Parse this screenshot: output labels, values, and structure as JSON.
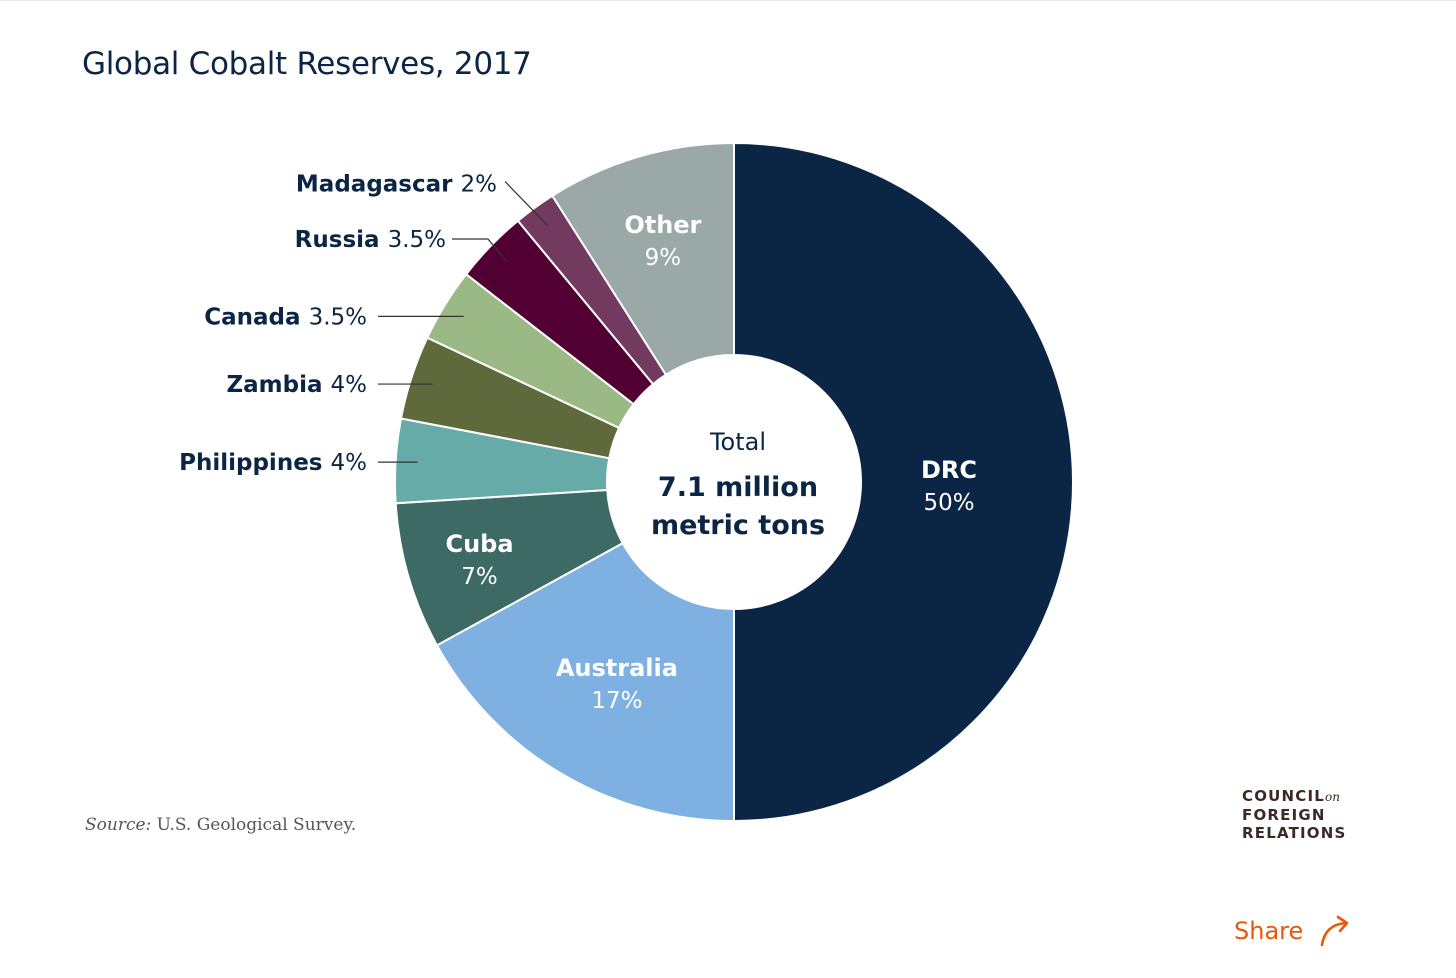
{
  "chart_data": {
    "type": "pie",
    "title": "Global Cobalt Reserves, 2017",
    "slices": [
      {
        "label": "DRC",
        "value_label": "50%",
        "value": 50,
        "color": "#0b2545",
        "label_color": "#ffffff"
      },
      {
        "label": "Australia",
        "value_label": "17%",
        "value": 17,
        "color": "#7fb0e2",
        "label_color": "#ffffff"
      },
      {
        "label": "Cuba",
        "value_label": "7%",
        "value": 7,
        "color": "#3e6a65",
        "label_color": "#ffffff"
      },
      {
        "label": "Philippines",
        "value_label": "4%",
        "value": 4,
        "color": "#67aba9",
        "label_color": "#0b2545"
      },
      {
        "label": "Zambia",
        "value_label": "4%",
        "value": 4,
        "color": "#5e6a3c",
        "label_color": "#0b2545"
      },
      {
        "label": "Canada",
        "value_label": "3.5%",
        "value": 3.5,
        "color": "#9bb985",
        "label_color": "#0b2545"
      },
      {
        "label": "Russia",
        "value_label": "3.5%",
        "value": 3.5,
        "color": "#520033",
        "label_color": "#0b2545"
      },
      {
        "label": "Madagascar",
        "value_label": "2%",
        "value": 2,
        "color": "#713a5e",
        "label_color": "#0b2545"
      },
      {
        "label": "Other",
        "value_label": "9%",
        "value": 9,
        "color": "#9aa9a7",
        "label_color": "#ffffff"
      }
    ],
    "center": {
      "label": "Total",
      "value_line1": "7.1 million",
      "value_line2": "metric tons"
    }
  },
  "source": {
    "label": "Source:",
    "text": "U.S. Geological Survey."
  },
  "logo": {
    "line1": "COUNCIL",
    "line1_suffix": "on",
    "line2": "FOREIGN",
    "line3": "RELATIONS"
  },
  "share": {
    "label": "Share",
    "icon": "share-arrow-icon",
    "color": "#e8580c"
  }
}
